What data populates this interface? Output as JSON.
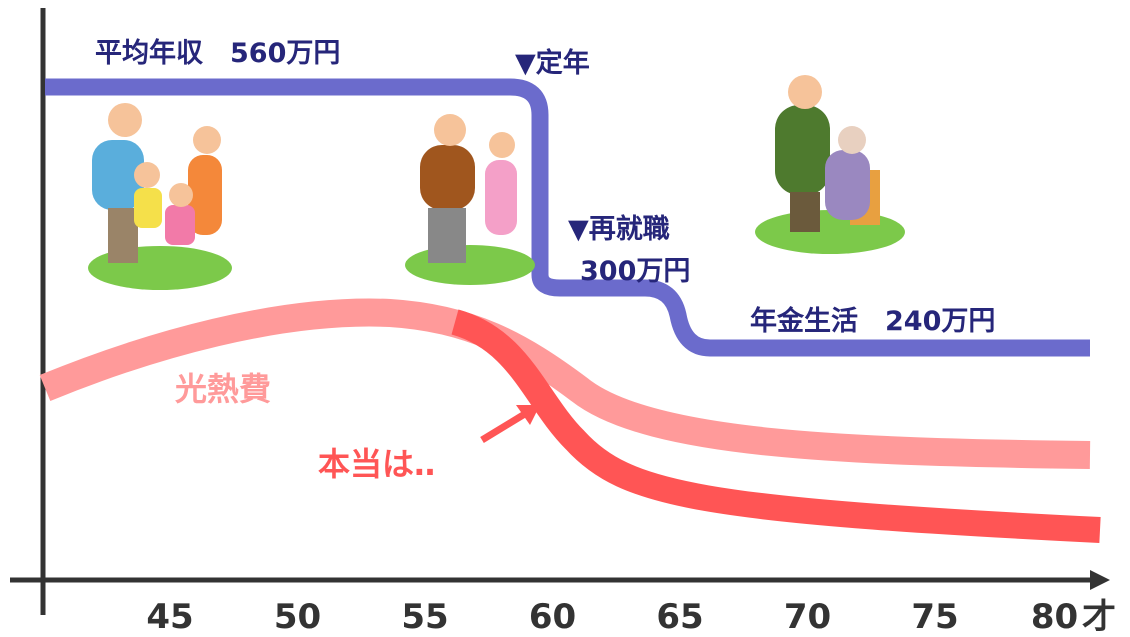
{
  "labels": {
    "income": "平均年収　560万円",
    "retirement": "▼定年",
    "reemployment": "▼再就職",
    "reemployment_income": "300万円",
    "pension": "年金生活　240万円",
    "utility": "光熱費",
    "actual": "本当は‥"
  },
  "x_axis": {
    "ticks": [
      "45",
      "50",
      "55",
      "60",
      "65",
      "70",
      "75",
      "80"
    ],
    "unit": "才"
  }
}
